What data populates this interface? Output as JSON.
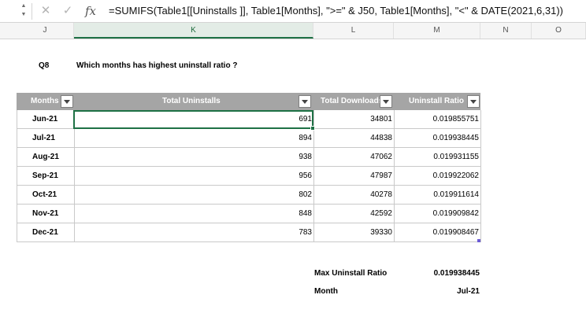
{
  "formula_bar": {
    "fx_label": "fx",
    "formula": "=SUMIFS(Table1[[Uninstalls ]], Table1[Months], \">=\" & J50, Table1[Months], \"<\" & DATE(2021,6,31))"
  },
  "columns": [
    "J",
    "K",
    "L",
    "M",
    "N",
    "O"
  ],
  "active_column": "K",
  "question": {
    "id": "Q8",
    "text": "Which months has highest uninstall ratio ?"
  },
  "table": {
    "header_color": "#a5a5a5",
    "headers": [
      "Months",
      "Total Uninstalls",
      "Total Downloads",
      "Uninstall Ratio"
    ],
    "rows": [
      {
        "month": "Jun-21",
        "uninstalls": "691",
        "downloads": "34801",
        "ratio": "0.019855751"
      },
      {
        "month": "Jul-21",
        "uninstalls": "894",
        "downloads": "44838",
        "ratio": "0.019938445"
      },
      {
        "month": "Aug-21",
        "uninstalls": "938",
        "downloads": "47062",
        "ratio": "0.019931155"
      },
      {
        "month": "Sep-21",
        "uninstalls": "956",
        "downloads": "47987",
        "ratio": "0.019922062"
      },
      {
        "month": "Oct-21",
        "uninstalls": "802",
        "downloads": "40278",
        "ratio": "0.019911614"
      },
      {
        "month": "Nov-21",
        "uninstalls": "848",
        "downloads": "42592",
        "ratio": "0.019909842"
      },
      {
        "month": "Dec-21",
        "uninstalls": "783",
        "downloads": "39330",
        "ratio": "0.019908467"
      }
    ]
  },
  "summary": {
    "max_label": "Max Uninstall Ratio",
    "max_value": "0.019938445",
    "month_label": "Month",
    "month_value": "Jul-21"
  },
  "accent_color": "#1e7145"
}
